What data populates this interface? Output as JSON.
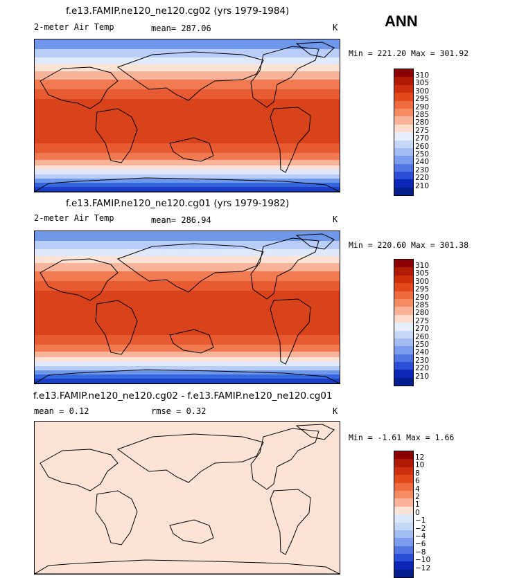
{
  "season": "ANN",
  "panels": [
    {
      "title": "f.e13.FAMIP.ne120_ne120.cg02 (yrs 1979-1984)",
      "var": "2-meter Air Temp",
      "stat1": "mean= 287.06",
      "stat2": "",
      "units": "K",
      "minmax": "Min = 221.20 Max = 301.92",
      "ticks": [
        "310",
        "305",
        "300",
        "295",
        "290",
        "285",
        "280",
        "275",
        "270",
        "260",
        "250",
        "240",
        "230",
        "220",
        "210"
      ],
      "bands": [
        "#e85a32",
        "#f17a50",
        "#f8b49a",
        "#fde3d5",
        "#dfe9fb",
        "#b8cdf7",
        "#6f97ea",
        "#3467dd",
        "#1b3fc9"
      ],
      "tropics": "#d9431c"
    },
    {
      "title": "f.e13.FAMIP.ne120_ne120.cg01 (yrs 1979-1982)",
      "var": "2-meter Air Temp",
      "stat1": "mean= 286.94",
      "stat2": "",
      "units": "K",
      "minmax": "Min = 220.60 Max = 301.38",
      "ticks": [
        "310",
        "305",
        "300",
        "295",
        "290",
        "285",
        "280",
        "275",
        "270",
        "260",
        "250",
        "240",
        "230",
        "220",
        "210"
      ],
      "bands": [
        "#e85a32",
        "#f17a50",
        "#f8b49a",
        "#fde3d5",
        "#dfe9fb",
        "#b8cdf7",
        "#6f97ea",
        "#3467dd",
        "#1b3fc9"
      ],
      "tropics": "#d9431c"
    },
    {
      "title": "f.e13.FAMIP.ne120_ne120.cg02 - f.e13.FAMIP.ne120_ne120.cg01",
      "var": "mean =   0.12",
      "stat1": "rmse =   0.32",
      "stat2": "",
      "units": "K",
      "minmax": "Min =  -1.61 Max =   1.66",
      "ticks": [
        "12",
        "10",
        "8",
        "6",
        "4",
        "2",
        "1",
        "0",
        "−1",
        "−2",
        "−4",
        "−6",
        "−8",
        "−10",
        "−12"
      ],
      "bands": [
        "#fde3d5",
        "#fde3d5",
        "#fde3d5",
        "#fde3d5",
        "#fde3d5",
        "#fde3d5",
        "#fde3d5",
        "#fde3d5",
        "#fde3d5"
      ],
      "tropics": "#fde3d5"
    }
  ],
  "colorbar": {
    "temp": [
      "#8b0000",
      "#b11a05",
      "#cd2f0d",
      "#e24a1c",
      "#ef6a3e",
      "#f68a60",
      "#fab398",
      "#fddccb",
      "#e6eefb",
      "#c6d8f8",
      "#a3bdf3",
      "#7b9def",
      "#5176e4",
      "#2a4fd6",
      "#0c27b5",
      "#031e8c"
    ],
    "diff": [
      "#8b0000",
      "#b11a05",
      "#cd2f0d",
      "#e24a1c",
      "#ef6a3e",
      "#f68a60",
      "#fab398",
      "#fde3d5",
      "#dbe7fb",
      "#c6d8f8",
      "#a3bdf3",
      "#7b9def",
      "#5176e4",
      "#2a4fd6",
      "#0c27b5",
      "#031e8c"
    ]
  }
}
